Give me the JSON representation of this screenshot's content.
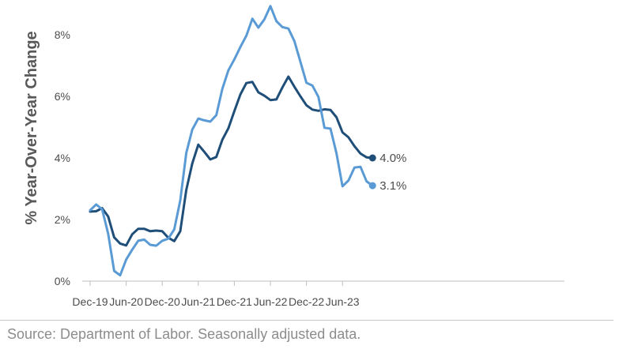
{
  "chart_data": {
    "type": "line",
    "ylabel": "% Year-Over-Year Change",
    "xlabel": "",
    "ylim": [
      0,
      9
    ],
    "y_ticks": [
      {
        "value": 0,
        "label": "0%"
      },
      {
        "value": 2,
        "label": "2%"
      },
      {
        "value": 4,
        "label": "4%"
      },
      {
        "value": 6,
        "label": "6%"
      },
      {
        "value": 8,
        "label": "8%"
      }
    ],
    "x_ticks": [
      {
        "index": 0,
        "label": "Dec-19"
      },
      {
        "index": 6,
        "label": "Jun-20"
      },
      {
        "index": 12,
        "label": "Dec-20"
      },
      {
        "index": 18,
        "label": "Jun-21"
      },
      {
        "index": 24,
        "label": "Dec-21"
      },
      {
        "index": 30,
        "label": "Jun-22"
      },
      {
        "index": 36,
        "label": "Dec-22"
      },
      {
        "index": 42,
        "label": "Jun-23"
      }
    ],
    "x_range": [
      0,
      48
    ],
    "grid": false,
    "series": [
      {
        "color": "#1f4e79",
        "end_label": "4.0%",
        "values": [
          2.26,
          2.27,
          2.37,
          2.1,
          1.42,
          1.22,
          1.16,
          1.52,
          1.7,
          1.7,
          1.62,
          1.64,
          1.62,
          1.41,
          1.3,
          1.62,
          2.96,
          3.82,
          4.43,
          4.2,
          3.95,
          4.03,
          4.59,
          4.96,
          5.52,
          6.06,
          6.43,
          6.47,
          6.13,
          6.02,
          5.88,
          5.9,
          6.29,
          6.64,
          6.31,
          6.0,
          5.71,
          5.57,
          5.53,
          5.58,
          5.56,
          5.32,
          4.83,
          4.67,
          4.38,
          4.14,
          4.02,
          4.0
        ]
      },
      {
        "color": "#5b9bd5",
        "end_label": "3.1%",
        "values": [
          2.3,
          2.49,
          2.33,
          1.54,
          0.33,
          0.19,
          0.7,
          1.02,
          1.31,
          1.35,
          1.18,
          1.15,
          1.31,
          1.38,
          1.68,
          2.62,
          4.16,
          4.92,
          5.28,
          5.22,
          5.18,
          5.39,
          6.24,
          6.84,
          7.2,
          7.6,
          7.97,
          8.52,
          8.23,
          8.5,
          8.93,
          8.44,
          8.25,
          8.2,
          7.79,
          7.12,
          6.44,
          6.35,
          5.98,
          4.98,
          4.95,
          4.15,
          3.08,
          3.27,
          3.69,
          3.71,
          3.24,
          3.1
        ]
      }
    ]
  },
  "source_text": "Source: Department of Labor. Seasonally adjusted data."
}
